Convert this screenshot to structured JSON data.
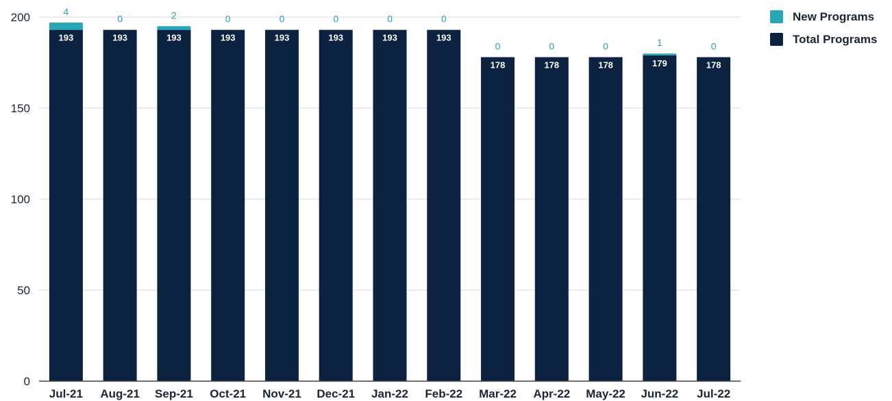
{
  "chart_data": {
    "type": "bar",
    "stacked": true,
    "categories": [
      "Jul-21",
      "Aug-21",
      "Sep-21",
      "Oct-21",
      "Nov-21",
      "Dec-21",
      "Jan-22",
      "Feb-22",
      "Mar-22",
      "Apr-22",
      "May-22",
      "Jun-22",
      "Jul-22"
    ],
    "series": [
      {
        "name": "Total Programs",
        "color": "#0b2240",
        "values": [
          193,
          193,
          193,
          193,
          193,
          193,
          193,
          193,
          178,
          178,
          178,
          179,
          178
        ]
      },
      {
        "name": "New Programs",
        "color": "#27a6b5",
        "values": [
          4,
          0,
          2,
          0,
          0,
          0,
          0,
          0,
          0,
          0,
          0,
          1,
          0
        ]
      }
    ],
    "ylim": [
      0,
      200
    ],
    "y_ticks": [
      0,
      50,
      100,
      150,
      200
    ],
    "title": "",
    "xlabel": "",
    "ylabel": "",
    "grid": true,
    "legend_position": "top-right"
  }
}
